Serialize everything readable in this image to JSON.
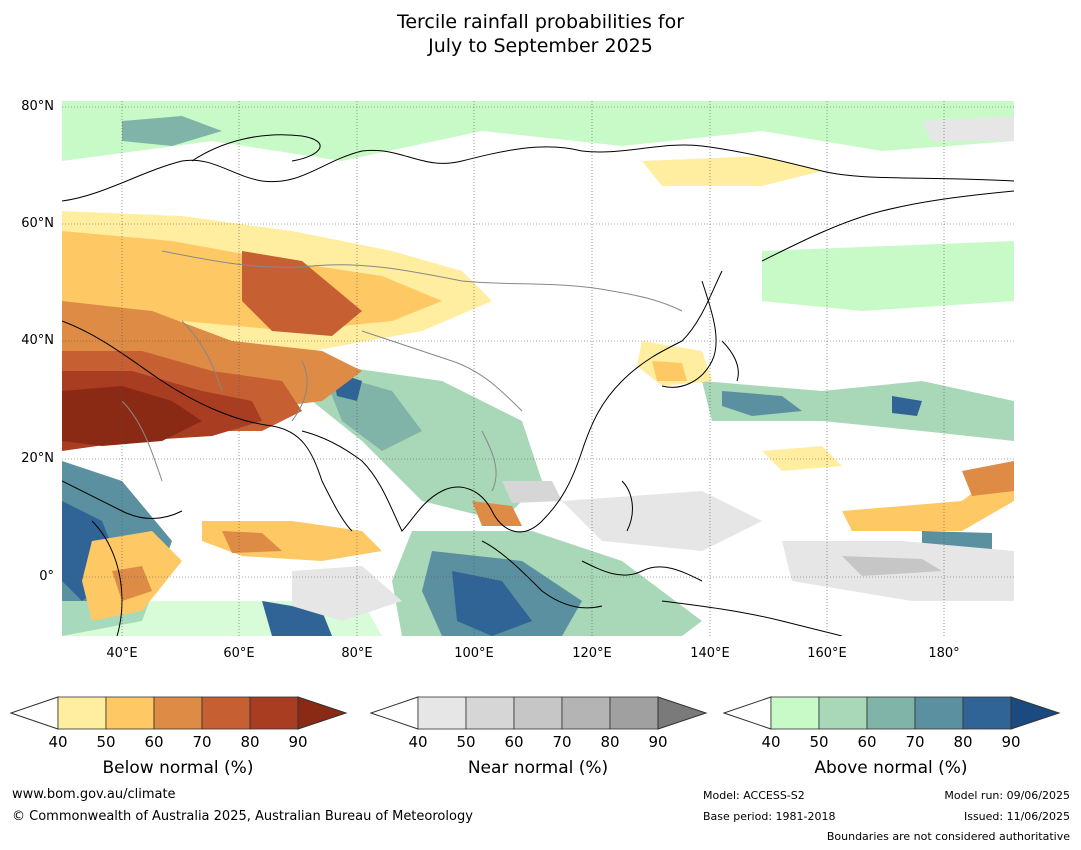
{
  "title_line1": "Tercile rainfall probabilities for",
  "title_line2": "July to September 2025",
  "map": {
    "lat_labels": [
      "80°N",
      "60°N",
      "40°N",
      "20°N",
      "0°"
    ],
    "lon_labels": [
      "40°E",
      "60°E",
      "80°E",
      "100°E",
      "120°E",
      "140°E",
      "160°E",
      "180°"
    ],
    "colors": {
      "ocean_base": "#ffffff",
      "coastline": "#000000",
      "border": "#888888"
    }
  },
  "colorbars": [
    {
      "label": "Below normal (%)",
      "ticks": [
        "40",
        "50",
        "60",
        "70",
        "80",
        "90"
      ],
      "colors": [
        "#ffeda0",
        "#fec965",
        "#dd8b45",
        "#c65f31",
        "#a93d22",
        "#8b2a14"
      ]
    },
    {
      "label": "Near normal (%)",
      "ticks": [
        "40",
        "50",
        "60",
        "70",
        "80",
        "90"
      ],
      "colors": [
        "#e6e6e6",
        "#d6d6d6",
        "#c6c6c6",
        "#b4b4b4",
        "#a0a0a0",
        "#7a7a7a"
      ]
    },
    {
      "label": "Above normal (%)",
      "ticks": [
        "40",
        "50",
        "60",
        "70",
        "80",
        "90"
      ],
      "colors": [
        "#c8fac8",
        "#a8d8b8",
        "#80b4a8",
        "#5a90a0",
        "#306496",
        "#1a4a80"
      ]
    }
  ],
  "footer": {
    "website": "www.bom.gov.au/climate",
    "copyright": "© Commonwealth of Australia 2025, Australian Bureau of Meteorology",
    "model": "Model: ACCESS-S2",
    "base_period": "Base period: 1981-2018",
    "model_run": "Model run: 09/06/2025",
    "issued": "Issued: 11/06/2025",
    "disclaimer": "Boundaries are not considered authoritative"
  }
}
